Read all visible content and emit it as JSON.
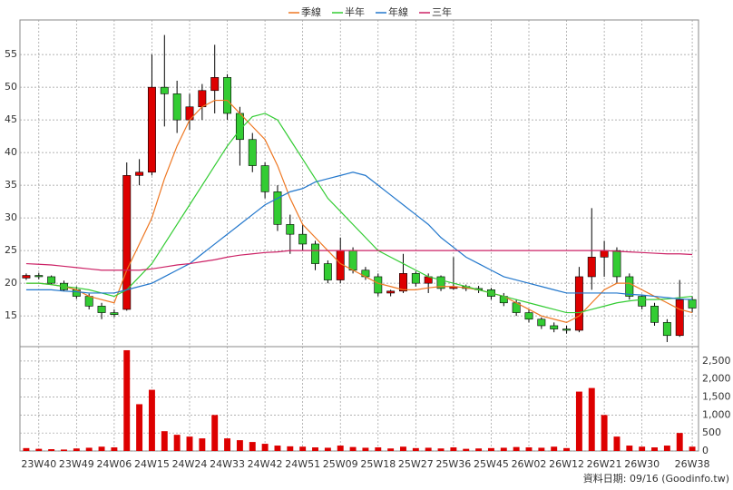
{
  "chart_data": {
    "type": "candlestick",
    "categories": [
      null,
      "23W40",
      null,
      null,
      "23W49",
      null,
      null,
      "24W06",
      null,
      null,
      "24W15",
      null,
      null,
      "24W24",
      null,
      null,
      "24W33",
      null,
      null,
      "24W42",
      null,
      null,
      "24W51",
      null,
      null,
      "25W09",
      null,
      null,
      "25W18",
      null,
      null,
      "25W27",
      null,
      null,
      "25W36",
      null,
      null,
      "25W45",
      null,
      null,
      "26W02",
      null,
      null,
      "26W12",
      null,
      null,
      "26W21",
      null,
      null,
      "26W30",
      null,
      null,
      null,
      "26W38"
    ],
    "open": [
      20.8,
      21.2,
      21.0,
      20.0,
      19.0,
      18.0,
      16.5,
      15.5,
      16.0,
      36.5,
      37.0,
      50.0,
      49.0,
      45.0,
      47.0,
      49.5,
      51.5,
      46.0,
      42.0,
      38.0,
      34.0,
      29.0,
      27.5,
      26.0,
      23.0,
      20.5,
      25.0,
      22.0,
      21.0,
      18.5,
      18.8,
      21.5,
      20.0,
      21.0,
      19.2,
      19.5,
      19.2,
      19.0,
      18.0,
      17.0,
      15.5,
      14.5,
      13.5,
      13.0,
      12.8,
      21.0,
      24.0,
      25.0,
      21.0,
      18.0,
      16.5,
      14.0,
      12.0,
      17.5
    ],
    "high": [
      21.5,
      21.6,
      21.2,
      20.4,
      19.5,
      18.4,
      17.0,
      16.0,
      38.5,
      39.0,
      55.0,
      58.0,
      51.0,
      49.0,
      50.5,
      56.5,
      52.0,
      47.0,
      43.0,
      38.5,
      35.0,
      30.5,
      29.0,
      26.5,
      23.5,
      27.0,
      25.5,
      22.5,
      21.5,
      19.0,
      24.5,
      21.8,
      21.5,
      21.2,
      24.0,
      19.8,
      19.6,
      19.3,
      18.5,
      17.5,
      16.0,
      14.8,
      14.0,
      13.5,
      22.5,
      31.5,
      26.5,
      25.5,
      21.5,
      18.3,
      17.0,
      14.5,
      20.5,
      18.0
    ],
    "low": [
      20.5,
      20.6,
      19.8,
      18.8,
      17.6,
      16.0,
      14.5,
      14.8,
      15.8,
      35.0,
      36.5,
      44.0,
      43.0,
      43.5,
      45.0,
      46.0,
      45.0,
      38.0,
      37.0,
      33.0,
      28.0,
      24.5,
      25.0,
      22.0,
      20.0,
      20.0,
      21.5,
      20.5,
      18.0,
      18.0,
      18.5,
      19.5,
      18.5,
      18.8,
      19.0,
      18.8,
      18.5,
      17.5,
      16.5,
      15.0,
      14.0,
      13.0,
      12.5,
      12.3,
      12.5,
      19.0,
      21.0,
      20.0,
      17.5,
      16.0,
      13.5,
      11.0,
      11.8,
      15.5
    ],
    "close": [
      21.2,
      21.0,
      20.0,
      19.0,
      18.0,
      16.5,
      15.5,
      15.2,
      36.5,
      37.0,
      50.0,
      49.0,
      45.0,
      47.0,
      49.5,
      51.5,
      46.0,
      42.0,
      38.0,
      34.0,
      29.0,
      27.5,
      26.0,
      23.0,
      20.5,
      25.0,
      22.0,
      21.0,
      18.5,
      18.8,
      21.5,
      20.0,
      21.0,
      19.2,
      19.5,
      19.2,
      19.0,
      18.0,
      17.0,
      15.5,
      14.5,
      13.5,
      13.0,
      12.8,
      21.0,
      24.0,
      25.0,
      21.0,
      18.0,
      16.5,
      14.0,
      12.0,
      17.5,
      16.2
    ],
    "up_color": "#dd0000",
    "down_color": "#33cc33",
    "series": [
      {
        "name": "季線",
        "color": "#ee7722",
        "values": [
          20,
          20,
          19.8,
          19.5,
          19,
          18,
          17.5,
          17,
          22,
          26,
          30,
          36,
          41,
          45,
          47,
          48,
          48,
          46,
          44,
          42,
          38,
          33,
          29,
          27,
          25,
          23,
          22,
          21,
          20,
          19.5,
          19,
          19,
          19.3,
          19.5,
          19.5,
          19.3,
          19,
          18.5,
          18,
          17,
          16,
          15,
          14.5,
          14,
          15,
          17,
          19,
          20,
          20,
          19,
          18,
          17,
          16,
          15.5
        ]
      },
      {
        "name": "半年",
        "color": "#33cc33",
        "values": [
          20,
          20,
          19.8,
          19.5,
          19.3,
          19,
          18.5,
          18,
          19,
          21,
          23,
          26,
          29,
          32,
          35,
          38,
          41,
          43.5,
          45.5,
          46,
          45,
          42,
          39,
          36,
          33,
          31,
          29,
          27,
          25,
          24,
          23,
          22,
          21,
          20.5,
          20,
          19.5,
          19,
          18.5,
          18,
          17.5,
          17,
          16.5,
          16,
          15.5,
          15.5,
          16,
          16.5,
          17,
          17.3,
          17.5,
          17.5,
          17.6,
          17.8,
          18
        ]
      },
      {
        "name": "年線",
        "color": "#2277cc",
        "values": [
          19,
          19,
          19,
          18.8,
          18.7,
          18.5,
          18.5,
          18.5,
          19,
          19.5,
          20,
          21,
          22,
          23,
          24.5,
          26,
          27.5,
          29,
          30.5,
          32,
          33,
          34,
          34.5,
          35.5,
          36,
          36.5,
          37,
          36.5,
          35,
          33.5,
          32,
          30.5,
          29,
          27,
          25.5,
          24,
          23,
          22,
          21,
          20.5,
          20,
          19.5,
          19,
          18.5,
          18.5,
          18.5,
          18.5,
          18.5,
          18.3,
          18.2,
          18,
          17.8,
          17.6,
          17.5
        ]
      },
      {
        "name": "三年",
        "color": "#cc2266",
        "values": [
          23,
          22.9,
          22.8,
          22.6,
          22.4,
          22.2,
          22,
          22,
          22,
          22,
          22.2,
          22.5,
          22.8,
          23,
          23.3,
          23.6,
          24,
          24.3,
          24.5,
          24.7,
          24.8,
          25,
          25,
          25,
          25,
          25,
          25,
          25,
          25,
          25,
          25,
          25,
          25,
          25,
          25,
          25,
          25,
          25,
          25,
          25,
          25,
          25,
          25,
          25,
          25,
          25,
          25,
          24.9,
          24.8,
          24.7,
          24.6,
          24.5,
          24.5,
          24.4
        ]
      }
    ],
    "ylim": [
      10.3,
      60.3
    ],
    "yticks": [
      15,
      20,
      25,
      30,
      35,
      40,
      45,
      50,
      55
    ],
    "grid": true,
    "volume": {
      "color": "#dd0000",
      "values": [
        80,
        60,
        50,
        40,
        70,
        90,
        120,
        100,
        2800,
        1300,
        1700,
        550,
        450,
        400,
        350,
        1000,
        350,
        300,
        250,
        200,
        150,
        130,
        120,
        100,
        90,
        150,
        110,
        90,
        100,
        70,
        120,
        80,
        90,
        70,
        100,
        60,
        70,
        80,
        90,
        110,
        100,
        90,
        120,
        80,
        1650,
        1750,
        1000,
        400,
        150,
        120,
        100,
        150,
        500,
        120
      ],
      "ylim": [
        0,
        2900
      ],
      "yticks": [
        0,
        500,
        {
          "value": 1000,
          "label": "1,000"
        },
        {
          "value": 1500,
          "label": "1,500"
        },
        {
          "value": 2000,
          "label": "2,000"
        },
        {
          "value": 2500,
          "label": "2,500"
        }
      ]
    },
    "footer": "資料日期: 09/16 (Goodinfo.tw)"
  }
}
